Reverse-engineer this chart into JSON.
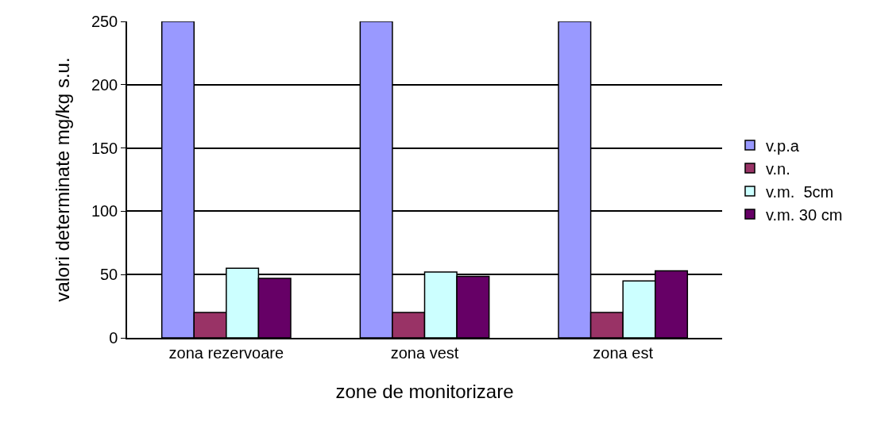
{
  "chart_data": {
    "type": "bar",
    "xlabel": "zone de monitorizare",
    "ylabel": "valori determinate mg/kg s.u.",
    "categories": [
      "zona rezervoare",
      "zona vest",
      "zona est"
    ],
    "series": [
      {
        "name": "v.p.a",
        "color": "#9999ff",
        "values": [
          250,
          250,
          250
        ]
      },
      {
        "name": "v.n.",
        "color": "#993366",
        "values": [
          20,
          20,
          20
        ]
      },
      {
        "name": "v.m.  5cm",
        "color": "#ccffff",
        "values": [
          55,
          52,
          45
        ]
      },
      {
        "name": "v.m. 30 cm",
        "color": "#660066",
        "values": [
          47,
          48.5,
          53
        ]
      }
    ],
    "ylim": [
      0,
      250
    ],
    "yticks": [
      0,
      50,
      100,
      150,
      200,
      250
    ],
    "grid": "y",
    "legend": "right"
  }
}
